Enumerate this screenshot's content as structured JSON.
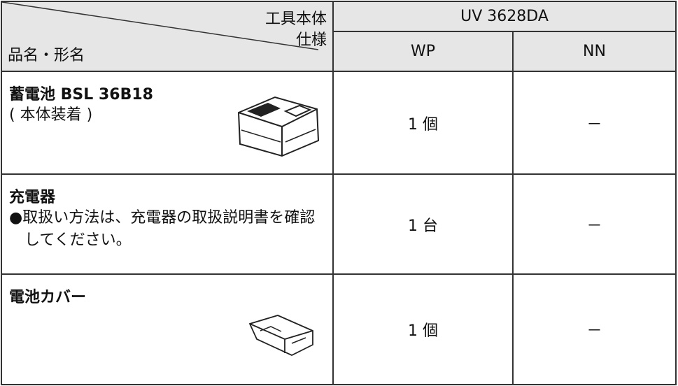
{
  "header": {
    "tool_label": "工具本体",
    "spec_label": "仕様",
    "item_label": "品名・形名",
    "model": "UV 3628DA",
    "variants": [
      "WP",
      "NN"
    ]
  },
  "rows": [
    {
      "name": "蓄電池 BSL 36B18",
      "note": "( 本体装着 )",
      "values": [
        "1 個",
        "－"
      ]
    },
    {
      "name": "充電器",
      "note": "●取扱い方法は、充電器の取扱説明書を確認してください。",
      "values": [
        "1 台",
        "－"
      ]
    },
    {
      "name": "電池カバー",
      "values": [
        "1 個",
        "－"
      ]
    }
  ]
}
